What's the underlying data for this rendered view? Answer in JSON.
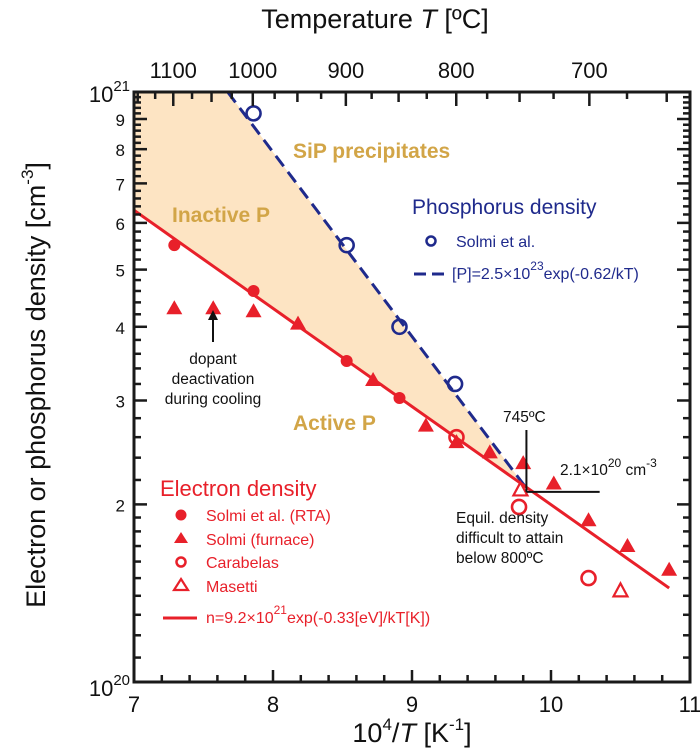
{
  "chart_data": {
    "type": "scatter",
    "x_axis": {
      "label_main": "10",
      "label_sup": "4",
      "label_rest": "/",
      "label_var": "T",
      "label_unit": " [K",
      "label_unit_sup": "-1",
      "label_close": "]",
      "range": [
        7,
        11
      ],
      "ticks": [
        7,
        8,
        9,
        10,
        11
      ]
    },
    "top_axis": {
      "label": "Temperature ",
      "label_var": "T",
      "label_unit": " [ºC]",
      "ticks": [
        1100,
        1000,
        900,
        800,
        700
      ],
      "unit_conversion": "10^4/(T+273)"
    },
    "y_axis": {
      "label": "Electron or phosphorus density  [cm",
      "label_sup": "-3",
      "label_close": "]",
      "scale": "log",
      "range": [
        1e+20,
        1e+21
      ],
      "minor_tick_labels": [
        "2",
        "3",
        "4",
        "5",
        "6",
        "7",
        "8",
        "9"
      ],
      "decade_labels": [
        {
          "base": "10",
          "exp": "20"
        },
        {
          "base": "10",
          "exp": "21"
        }
      ]
    },
    "region_fill_color": "#fde4c3",
    "regions": {
      "precipitates": "SiP precipitates",
      "inactive": "Inactive P",
      "active": "Active P"
    },
    "phosphorus_legend": {
      "title": "Phosphorus density",
      "color": "#1f2a8c",
      "marker_label": "Solmi et al.",
      "fit_pre": "[P]=2.5×10",
      "fit_sup": "23",
      "fit_post": "exp(-0.62/kT)"
    },
    "electron_legend": {
      "title": "Electron density",
      "color": "#e8202a",
      "entries": [
        "Solmi et al. (RTA)",
        "Solmi (furnace)",
        "Carabelas",
        "Masetti"
      ],
      "fit_pre": "n=9.2×10",
      "fit_sup": "21",
      "fit_post": "exp(-0.33[eV]/kT[K])"
    },
    "fits": [
      {
        "name": "[P]=2.5×10^23 exp(-0.62/kT)",
        "prefactor": 2.5e+23,
        "Ea_eV": 0.62,
        "style": "dashed",
        "color": "#1f2a8c"
      },
      {
        "name": "n=9.2×10^21 exp(-0.33[eV]/kT[K])",
        "prefactor": 9.2e+21,
        "Ea_eV": 0.33,
        "style": "solid",
        "color": "#e8202a"
      }
    ],
    "series": [
      {
        "name": "Solmi et al.",
        "group": "phosphorus",
        "marker": "open-circle",
        "color": "#1f2a8c",
        "x": [
          7.86,
          8.53,
          8.91,
          9.31
        ],
        "y": [
          9.2e+20,
          5.5e+20,
          4e+20,
          3.2e+20
        ]
      },
      {
        "name": "Solmi et al. (RTA)",
        "group": "electron",
        "marker": "filled-circle",
        "color": "#e8202a",
        "x": [
          7.29,
          7.86,
          8.53,
          8.91
        ],
        "y": [
          5.5e+20,
          4.6e+20,
          3.5e+20,
          3.03e+20
        ]
      },
      {
        "name": "Solmi (furnace)",
        "group": "electron",
        "marker": "filled-triangle",
        "color": "#e8202a",
        "x": [
          7.29,
          7.57,
          7.86,
          8.18,
          8.72,
          9.1,
          9.32,
          9.56,
          9.8,
          10.02,
          10.27,
          10.55,
          10.85
        ],
        "y": [
          4.3e+20,
          4.3e+20,
          4.25e+20,
          4.05e+20,
          3.25e+20,
          2.72e+20,
          2.55e+20,
          2.45e+20,
          2.35e+20,
          2.17e+20,
          1.88e+20,
          1.7e+20,
          1.55e+20
        ]
      },
      {
        "name": "Carabelas",
        "group": "electron",
        "marker": "open-circle",
        "color": "#e8202a",
        "x": [
          9.32,
          9.77,
          10.27
        ],
        "y": [
          2.6e+20,
          1.98e+20,
          1.5e+20
        ]
      },
      {
        "name": "Masetti",
        "group": "electron",
        "marker": "open-triangle",
        "color": "#e8202a",
        "x": [
          9.78,
          10.5
        ],
        "y": [
          2.12e+20,
          1.43e+20
        ]
      }
    ],
    "annotations": {
      "deactivation": [
        "dopant",
        "deactivation",
        "during cooling"
      ],
      "temp_label": "745ºC",
      "temp_value_C": 745,
      "density_pre": "2.1×10",
      "density_sup": "20",
      "density_unit": " cm",
      "density_unit_sup": "-3",
      "density_value": 2.1e+20,
      "equil": [
        "Equil. density",
        "difficult to attain",
        "below 800ºC"
      ]
    }
  }
}
